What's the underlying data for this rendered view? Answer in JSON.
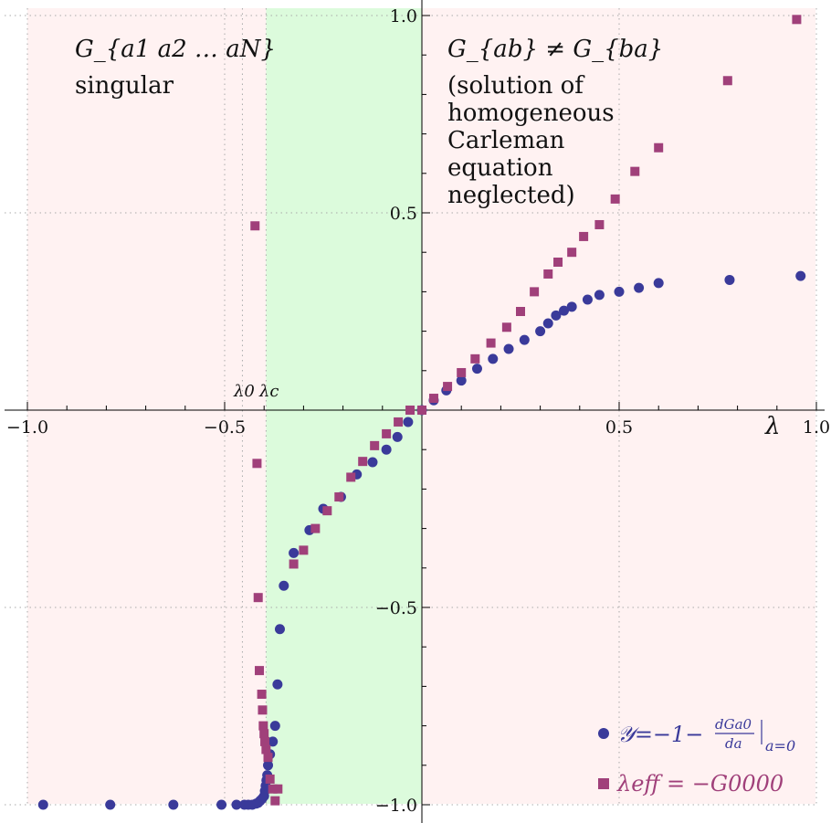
{
  "chart_data": {
    "type": "scatter",
    "xlim": [
      -1.0,
      1.0
    ],
    "ylim": [
      -1.0,
      1.0
    ],
    "xticks": [
      -1.0,
      -0.5,
      0.5,
      1.0
    ],
    "yticks": [
      -1.0,
      -0.5,
      0.5,
      1.0
    ],
    "xtick_labels": [
      "−1.0",
      "−0.5",
      "0.5",
      "1.0"
    ],
    "ytick_labels": [
      "−1.0",
      "−0.5",
      "0.5",
      "1.0"
    ],
    "xlabel": "λ",
    "grid": true,
    "regions": [
      {
        "x_from": -1.0,
        "x_to": -0.395,
        "color": "#fff2f2"
      },
      {
        "x_from": -0.395,
        "x_to": 0.0,
        "color": "#dcfbdc"
      },
      {
        "x_from": 0.0,
        "x_to": 1.0,
        "color": "#fff2f2"
      }
    ],
    "markers": {
      "lambda_0": -0.455,
      "lambda_c": -0.395
    },
    "annotations": {
      "singular_math": "G_{a1 a2 … aN}",
      "singular_text": "singular",
      "asym_math": "G_{ab} ≠ G_{ba}",
      "asym_lines": [
        "(solution of",
        "homogeneous",
        "Carleman",
        "equation",
        "neglected)"
      ],
      "lambda0": "λ0",
      "lambdac": "λc"
    },
    "series": [
      {
        "name": "𝒴=−1−dGa0/da|a=0",
        "legend_main": "𝒴=−1−",
        "legend_frac_num": "dGa0",
        "legend_frac_den": "da",
        "legend_sub": "a=0",
        "marker": "circle",
        "color": "#3a3a9a",
        "x": [
          -0.96,
          -0.79,
          -0.63,
          -0.508,
          -0.47,
          -0.45,
          -0.44,
          -0.43,
          -0.42,
          -0.415,
          -0.41,
          -0.405,
          -0.4,
          -0.398,
          -0.396,
          -0.394,
          -0.392,
          -0.39,
          -0.385,
          -0.378,
          -0.372,
          -0.366,
          -0.36,
          -0.35,
          -0.325,
          -0.285,
          -0.25,
          -0.205,
          -0.165,
          -0.125,
          -0.09,
          -0.062,
          -0.035,
          0.0,
          0.03,
          0.062,
          0.1,
          0.14,
          0.18,
          0.22,
          0.26,
          0.3,
          0.32,
          0.34,
          0.36,
          0.38,
          0.42,
          0.45,
          0.5,
          0.55,
          0.6,
          0.78,
          0.96
        ],
        "y": [
          -1.0,
          -1.0,
          -1.0,
          -1.0,
          -1.0,
          -1.0,
          -1.0,
          -1.0,
          -0.997,
          -0.995,
          -0.99,
          -0.985,
          -0.978,
          -0.965,
          -0.952,
          -0.938,
          -0.925,
          -0.9,
          -0.872,
          -0.84,
          -0.8,
          -0.695,
          -0.555,
          -0.445,
          -0.362,
          -0.304,
          -0.25,
          -0.22,
          -0.163,
          -0.132,
          -0.1,
          -0.068,
          -0.03,
          0.0,
          0.025,
          0.05,
          0.075,
          0.105,
          0.13,
          0.155,
          0.178,
          0.2,
          0.22,
          0.24,
          0.252,
          0.262,
          0.28,
          0.292,
          0.3,
          0.31,
          0.322,
          0.33,
          0.34
        ]
      },
      {
        "name": "λeff = −G0000",
        "legend_main": "λeff = −G0000",
        "marker": "square",
        "color": "#a0407a",
        "x": [
          -0.423,
          -0.418,
          -0.415,
          -0.412,
          -0.406,
          -0.404,
          -0.402,
          -0.4,
          -0.398,
          -0.395,
          -0.39,
          -0.385,
          -0.378,
          -0.372,
          -0.365,
          -0.325,
          -0.3,
          -0.27,
          -0.24,
          -0.21,
          -0.18,
          -0.15,
          -0.12,
          -0.09,
          -0.06,
          -0.03,
          0.0,
          0.03,
          0.065,
          0.1,
          0.135,
          0.175,
          0.215,
          0.25,
          0.285,
          0.32,
          0.345,
          0.38,
          0.41,
          0.45,
          0.49,
          0.54,
          0.6,
          0.775,
          0.95
        ],
        "y": [
          0.467,
          -0.135,
          -0.475,
          -0.66,
          -0.72,
          -0.76,
          -0.8,
          -0.82,
          -0.84,
          -0.86,
          -0.88,
          -0.935,
          -0.96,
          -0.99,
          -0.96,
          -0.39,
          -0.355,
          -0.3,
          -0.255,
          -0.22,
          -0.17,
          -0.13,
          -0.09,
          -0.06,
          -0.03,
          0.0,
          0.0,
          0.03,
          0.06,
          0.095,
          0.13,
          0.17,
          0.21,
          0.25,
          0.3,
          0.345,
          0.375,
          0.4,
          0.44,
          0.47,
          0.535,
          0.605,
          0.665,
          0.835,
          0.99
        ]
      }
    ]
  }
}
